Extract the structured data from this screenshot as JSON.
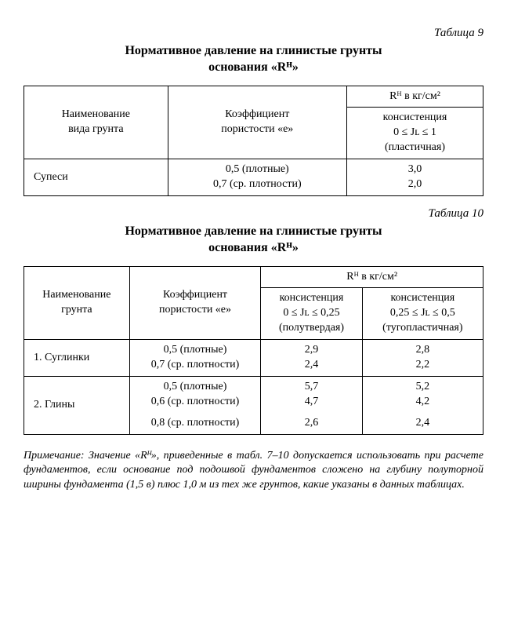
{
  "page": {
    "background_color": "#ffffff",
    "text_color": "#000000",
    "font_family": "Times New Roman",
    "base_font_size_pt": 11
  },
  "table9": {
    "label": "Таблица 9",
    "title_line1": "Нормативное давление на глинистые грунты",
    "title_line2": "основания «Rᴴ»",
    "col1_header_l1": "Наименование",
    "col1_header_l2": "вида грунта",
    "col2_header_l1": "Коэффициент",
    "col2_header_l2": "пористости «е»",
    "col3_header_top": "Rᴴ в кг/см²",
    "col3_header_l1": "консистенция",
    "col3_header_l2": "0 ≤ Jʟ ≤ 1",
    "col3_header_l3": "(пластичная)",
    "row1": {
      "name": "Супеси",
      "coef_l1": "0,5 (плотные)",
      "coef_l2": "0,7 (ср. плотности)",
      "val_l1": "3,0",
      "val_l2": "2,0"
    }
  },
  "table10": {
    "label": "Таблица 10",
    "title_line1": "Нормативное давление на глинистые грунты",
    "title_line2": "основания «Rᴴ»",
    "col1_header_l1": "Наименование",
    "col1_header_l2": "грунта",
    "col2_header_l1": "Коэффициент",
    "col2_header_l2": "пористости «е»",
    "col34_header_top": "Rᴴ в  кг/см²",
    "col3_header_l1": "консистенция",
    "col3_header_l2": "0 ≤ Jʟ ≤ 0,25",
    "col3_header_l3": "(полутвердая)",
    "col4_header_l1": "консистенция",
    "col4_header_l2": "0,25 ≤ Jʟ ≤ 0,5",
    "col4_header_l3": "(тугопластичная)",
    "row1": {
      "name": "1. Суглинки",
      "coef_l1": "0,5 (плотные)",
      "coef_l2": "0,7 (ср. плотности)",
      "v1_l1": "2,9",
      "v1_l2": "2,4",
      "v2_l1": "2,8",
      "v2_l2": "2,2"
    },
    "row2": {
      "name": "2. Глины",
      "coef_l1": "0,5 (плотные)",
      "coef_l2": "0,6 (ср. плотности)",
      "coef_l3": "0,8 (ср. плотности)",
      "v1_l1": "5,7",
      "v1_l2": "4,7",
      "v1_l3": "2,6",
      "v2_l1": "5,2",
      "v2_l2": "4,2",
      "v2_l3": "2,4"
    }
  },
  "footnote": "Примечание: Значение «Rᴴ», приведенные в табл. 7–10 допуска­ется использовать при расчете фундаментов, если основание под подошвой фундаментов сложено на глубину полуторной ширины фундамента (1,5 в) плюс 1,0 м из тех же грунтов, какие указаны в данных таблицах."
}
